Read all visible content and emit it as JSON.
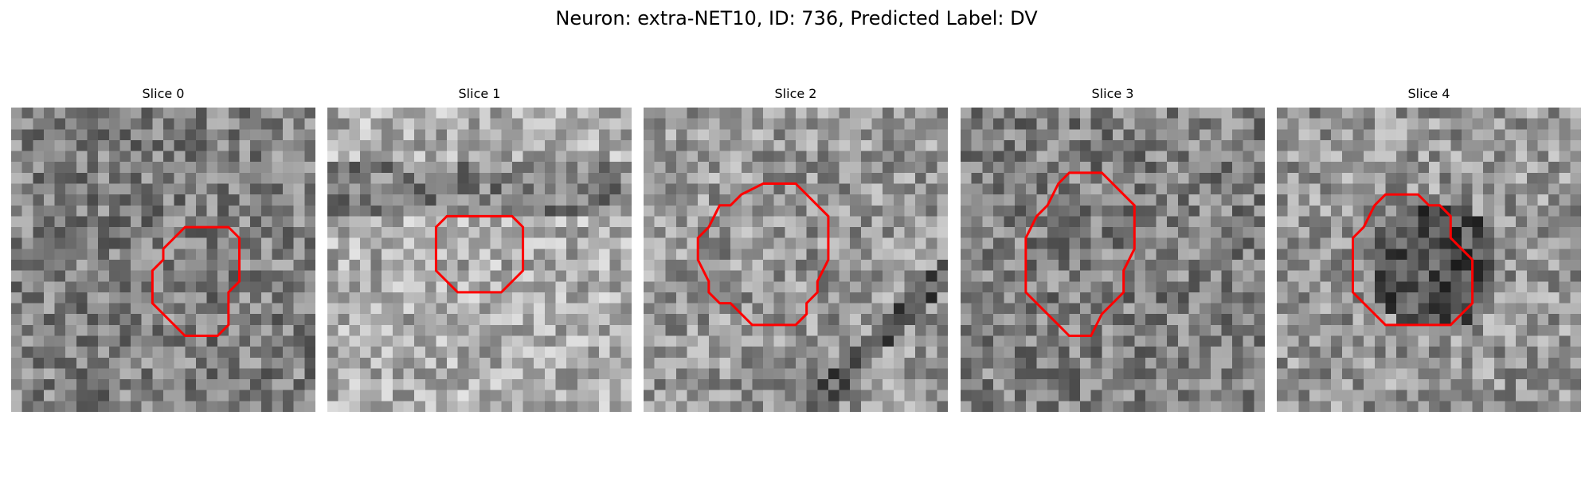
{
  "figure": {
    "title": "Neuron: extra-NET10, ID: 736, Predicted Label: DV"
  },
  "slices": [
    {
      "title": "Slice 0",
      "mean": 128,
      "contour": [
        [
          18,
          11
        ],
        [
          20,
          11
        ],
        [
          21,
          12
        ],
        [
          21,
          16
        ],
        [
          20,
          17
        ],
        [
          20,
          20
        ],
        [
          19,
          21
        ],
        [
          16,
          21
        ],
        [
          14,
          19
        ],
        [
          13,
          18
        ],
        [
          13,
          15
        ],
        [
          14,
          14
        ],
        [
          14,
          13
        ],
        [
          16,
          11
        ]
      ]
    },
    {
      "title": "Slice 1",
      "mean": 172,
      "contour": [
        [
          11,
          10
        ],
        [
          17,
          10
        ],
        [
          18,
          11
        ],
        [
          18,
          15
        ],
        [
          16,
          17
        ],
        [
          12,
          17
        ],
        [
          10,
          15
        ],
        [
          10,
          11
        ]
      ]
    },
    {
      "title": "Slice 2",
      "mean": 150,
      "contour": [
        [
          11,
          7
        ],
        [
          14,
          7
        ],
        [
          16,
          9
        ],
        [
          17,
          10
        ],
        [
          17,
          14
        ],
        [
          16,
          16
        ],
        [
          16,
          17
        ],
        [
          15,
          18
        ],
        [
          15,
          19
        ],
        [
          14,
          20
        ],
        [
          10,
          20
        ],
        [
          8,
          18
        ],
        [
          7,
          18
        ],
        [
          6,
          17
        ],
        [
          6,
          16
        ],
        [
          5,
          14
        ],
        [
          5,
          12
        ],
        [
          6,
          11
        ],
        [
          7,
          9
        ],
        [
          8,
          9
        ],
        [
          9,
          8
        ]
      ]
    },
    {
      "title": "Slice 3",
      "mean": 128,
      "contour": [
        [
          10,
          6
        ],
        [
          13,
          6
        ],
        [
          15,
          8
        ],
        [
          16,
          9
        ],
        [
          16,
          13
        ],
        [
          15,
          15
        ],
        [
          15,
          17
        ],
        [
          13,
          19
        ],
        [
          12,
          21
        ],
        [
          10,
          21
        ],
        [
          9,
          20
        ],
        [
          8,
          19
        ],
        [
          7,
          18
        ],
        [
          6,
          17
        ],
        [
          6,
          12
        ],
        [
          7,
          10
        ],
        [
          8,
          9
        ],
        [
          9,
          7
        ]
      ]
    },
    {
      "title": "Slice 4",
      "mean": 150,
      "contour": [
        [
          10,
          8
        ],
        [
          13,
          8
        ],
        [
          14,
          9
        ],
        [
          15,
          9
        ],
        [
          16,
          10
        ],
        [
          16,
          12
        ],
        [
          17,
          13
        ],
        [
          18,
          14
        ],
        [
          18,
          18
        ],
        [
          17,
          19
        ],
        [
          16,
          20
        ],
        [
          10,
          20
        ],
        [
          8,
          18
        ],
        [
          7,
          17
        ],
        [
          7,
          12
        ],
        [
          8,
          11
        ],
        [
          9,
          9
        ]
      ]
    }
  ],
  "colors": {
    "contour": "#ff0000",
    "background": "#ffffff"
  }
}
